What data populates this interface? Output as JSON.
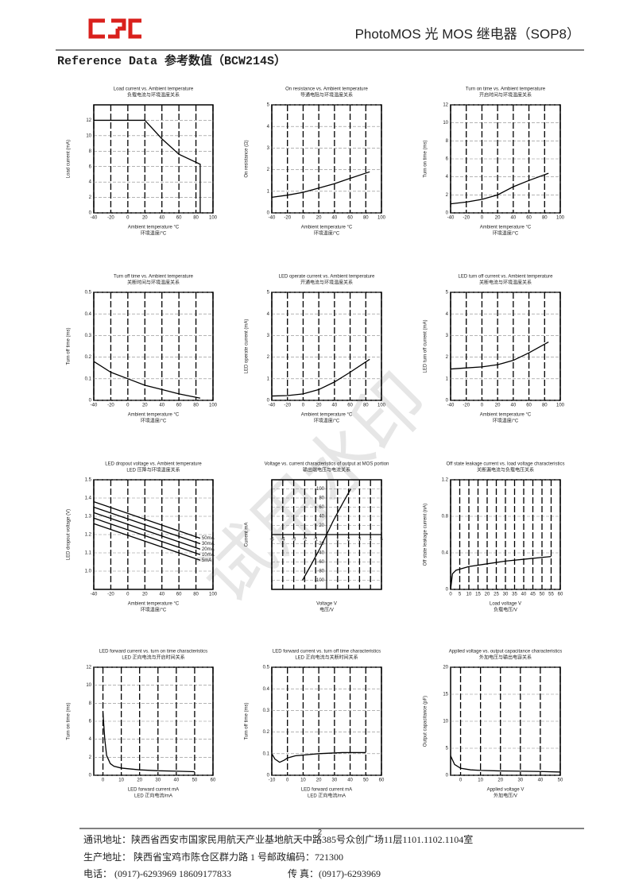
{
  "header": {
    "title": "PhotoMOS 光 MOS 继电器（SOP8）"
  },
  "section_title": "Reference Data 参考数值（BCW214S）",
  "watermark": "试用水印",
  "charts": [
    {
      "type": "line",
      "title": "Load current vs. Ambient temperature",
      "title_cn": "负载电流与环境温度关系",
      "xlabel": "Ambient temperature °C",
      "xlabel_cn": "环境温度/°C",
      "ylabel": "Load current (mA)",
      "xlim": [
        -40,
        100
      ],
      "ylim": [
        0,
        14
      ],
      "xticks": [
        -40,
        -20,
        0,
        20,
        40,
        60,
        80,
        100
      ],
      "yticks": [
        0,
        2,
        4,
        6,
        8,
        10,
        12
      ],
      "x": [
        -40,
        20,
        40,
        60,
        85,
        85
      ],
      "series": [
        {
          "values": [
            12,
            12,
            9.6,
            7.6,
            6.3,
            0
          ]
        }
      ]
    },
    {
      "type": "line",
      "title": "On resistance vs. Ambient temperature",
      "title_cn": "导通电阻与环境温度关系",
      "xlabel": "Ambient temperature °C",
      "xlabel_cn": "环境温度/°C",
      "ylabel": "On resistance (Ω)",
      "xlim": [
        -40,
        100
      ],
      "ylim": [
        0,
        5
      ],
      "xticks": [
        -40,
        -20,
        0,
        20,
        40,
        60,
        80,
        100
      ],
      "yticks": [
        0,
        1,
        2,
        3,
        4,
        5
      ],
      "x": [
        -40,
        -20,
        0,
        20,
        40,
        60,
        85
      ],
      "series": [
        {
          "values": [
            0.72,
            0.82,
            0.95,
            1.15,
            1.35,
            1.6,
            1.9
          ]
        }
      ]
    },
    {
      "type": "line",
      "title": "Turn on time vs. Ambient temperature",
      "title_cn": "开启时间与环境温度关系",
      "xlabel": "Ambient temperature °C",
      "xlabel_cn": "环境温度/°C",
      "ylabel": "Turn on time (ms)",
      "xlim": [
        -40,
        100
      ],
      "ylim": [
        0,
        12
      ],
      "xticks": [
        -40,
        -20,
        0,
        20,
        40,
        60,
        80,
        100
      ],
      "yticks": [
        0,
        2,
        4,
        6,
        8,
        10,
        12
      ],
      "x": [
        -40,
        -20,
        0,
        20,
        40,
        60,
        85
      ],
      "series": [
        {
          "values": [
            1.0,
            1.2,
            1.5,
            2.0,
            2.9,
            3.6,
            4.4
          ]
        }
      ]
    },
    {
      "type": "line",
      "title": "Turn off time vs. Ambient temperature",
      "title_cn": "关断时间与环境温度关系",
      "xlabel": "Ambient temperature °C",
      "xlabel_cn": "环境温度/°C",
      "ylabel": "Turn off time (ms)",
      "xlim": [
        -40,
        100
      ],
      "ylim": [
        0,
        0.5
      ],
      "xticks": [
        -40,
        -20,
        0,
        20,
        40,
        60,
        80,
        100
      ],
      "yticks": [
        0,
        0.1,
        0.2,
        0.3,
        0.4,
        0.5
      ],
      "x": [
        -40,
        -20,
        0,
        20,
        40,
        60,
        85
      ],
      "series": [
        {
          "values": [
            0.18,
            0.13,
            0.1,
            0.07,
            0.05,
            0.03,
            0.01
          ]
        }
      ]
    },
    {
      "type": "line",
      "title": "LED operate current vs. Ambient temperature",
      "title_cn": "开通电流与环境温度关系",
      "xlabel": "Ambient temperature °C",
      "xlabel_cn": "环境温度/°C",
      "ylabel": "LED operate current (mA)",
      "xlim": [
        -40,
        100
      ],
      "ylim": [
        0,
        5
      ],
      "xticks": [
        -40,
        -20,
        0,
        20,
        40,
        60,
        80,
        100
      ],
      "yticks": [
        0,
        1,
        2,
        3,
        4,
        5
      ],
      "x": [
        -40,
        -20,
        0,
        20,
        40,
        60,
        85
      ],
      "series": [
        {
          "values": [
            0.2,
            0.22,
            0.3,
            0.5,
            0.85,
            1.3,
            1.9
          ]
        }
      ]
    },
    {
      "type": "line",
      "title": "LED turn off current vs. Ambient temperature",
      "title_cn": "关断电流与环境温度关系",
      "xlabel": "Ambient temperature °C",
      "xlabel_cn": "环境温度/°C",
      "ylabel": "LED turn off current (mA)",
      "xlim": [
        -40,
        100
      ],
      "ylim": [
        0,
        5
      ],
      "xticks": [
        -40,
        -20,
        0,
        20,
        40,
        60,
        80,
        100
      ],
      "yticks": [
        0,
        1,
        2,
        3,
        4,
        5
      ],
      "x": [
        -40,
        -20,
        0,
        20,
        40,
        60,
        85
      ],
      "series": [
        {
          "values": [
            1.45,
            1.5,
            1.55,
            1.65,
            1.85,
            2.2,
            2.7
          ]
        }
      ]
    },
    {
      "type": "line",
      "title": "LED dropout voltage vs. Ambient temperature",
      "title_cn": "LED 压降与环境温度关系",
      "xlabel": "Ambient temperature °C",
      "xlabel_cn": "环境温度/°C",
      "ylabel": "LED dropout voltage (V)",
      "xlim": [
        -40,
        100
      ],
      "ylim": [
        0.9,
        1.5
      ],
      "xticks": [
        -40,
        -20,
        0,
        20,
        40,
        60,
        80,
        100
      ],
      "yticks": [
        {
          "value": 1,
          "label": "1.0"
        },
        1.1,
        1.2,
        1.3,
        1.4,
        1.5
      ],
      "x": [
        -40,
        85
      ],
      "series": [
        {
          "name": "50mA",
          "values": [
            1.38,
            1.18
          ]
        },
        {
          "name": "30mA",
          "values": [
            1.35,
            1.15
          ]
        },
        {
          "name": "20mA",
          "values": [
            1.32,
            1.12
          ]
        },
        {
          "name": "10mA",
          "values": [
            1.29,
            1.09
          ]
        },
        {
          "name": "5mA",
          "values": [
            1.26,
            1.06
          ]
        }
      ]
    },
    {
      "type": "line",
      "axes": "crossed",
      "title": "Voltage vs. current characteristics of output at MOS portion",
      "title_cn": "输出端电压与电流关系",
      "xlabel": "Voltage V",
      "xlabel_cn": "电压/V",
      "ylabel": "Current mA",
      "xlim": [
        -5,
        5
      ],
      "ylim": [
        -120,
        120
      ],
      "xticks": [
        -5,
        -4,
        -3,
        -2,
        -1,
        1,
        2,
        3,
        4,
        5
      ],
      "yticks": [
        -100,
        -80,
        -60,
        -40,
        -20,
        20,
        40,
        60,
        80,
        100
      ],
      "x": [
        -2.2,
        -1.5,
        -0.6,
        0,
        0.6,
        1.5,
        2.2
      ],
      "series": [
        {
          "values": [
            -100,
            -70,
            -30,
            0,
            30,
            70,
            100
          ]
        }
      ]
    },
    {
      "type": "line",
      "title": "Off state leakage current vs. load voltage characteristics",
      "title_cn": "关断漏电流与负载电压关系",
      "xlabel": "Load voltage V",
      "xlabel_cn": "负载电压/V",
      "ylabel": "Off state leakage current (nA)",
      "xlim": [
        0,
        60
      ],
      "ylim": [
        0,
        1.2
      ],
      "xticks": [
        0,
        5,
        10,
        15,
        20,
        25,
        30,
        35,
        40,
        45,
        50,
        55,
        60
      ],
      "yticks": [
        0,
        0.4,
        0.8,
        1.2
      ],
      "x": [
        0,
        1,
        3,
        10,
        20,
        30,
        40,
        50,
        55
      ],
      "series": [
        {
          "values": [
            0,
            0.17,
            0.21,
            0.25,
            0.28,
            0.31,
            0.33,
            0.35,
            0.36
          ]
        }
      ]
    },
    {
      "type": "line",
      "title": "LED forward current vs. turn on time characteristics",
      "title_cn": "LED 正向电流与开启时间关系",
      "xlabel": "LED forward current mA",
      "xlabel_cn": "LED 正向电流/mA",
      "ylabel": "Turn on time (ms)",
      "xlim": [
        -5,
        60
      ],
      "ylim": [
        0,
        12
      ],
      "xticks": [
        0,
        10,
        20,
        30,
        40,
        50,
        60
      ],
      "yticks": [
        0,
        2,
        4,
        6,
        8,
        10,
        12
      ],
      "x": [
        0,
        1,
        2,
        4,
        6,
        10,
        20,
        30,
        40,
        50
      ],
      "series": [
        {
          "values": [
            7,
            4,
            2.2,
            1.3,
            1.0,
            0.8,
            0.6,
            0.5,
            0.45,
            0.4
          ]
        }
      ]
    },
    {
      "type": "line",
      "title": "LED forward current vs. turn off time characteristics",
      "title_cn": "LED 正向电流与关断时间关系",
      "xlabel": "LED forward current mA",
      "xlabel_cn": "LED 正向电流/mA",
      "ylabel": "Turn off time (ms)",
      "xlim": [
        -10,
        60
      ],
      "ylim": [
        0,
        0.5
      ],
      "xticks": [
        -10,
        0,
        10,
        20,
        30,
        40,
        50,
        60
      ],
      "yticks": [
        0,
        0.1,
        0.2,
        0.3,
        0.4,
        0.5
      ],
      "x": [
        -10,
        -8,
        -5,
        -2,
        0,
        5,
        20,
        35,
        50
      ],
      "series": [
        {
          "values": [
            0.1,
            0.075,
            0.06,
            0.07,
            0.08,
            0.09,
            0.1,
            0.105,
            0.105
          ]
        }
      ]
    },
    {
      "type": "line",
      "title": "Applied voltage vs. output capacitance characteristics",
      "title_cn": "外加电压与输出电容关系",
      "xlabel": "Applied voltage V",
      "xlabel_cn": "外加电压/V",
      "ylabel": "Output capacitance (pF)",
      "xlim": [
        -5,
        50
      ],
      "ylim": [
        0,
        20
      ],
      "xticks": [
        0,
        10,
        20,
        30,
        40,
        50
      ],
      "yticks": [
        0,
        5,
        10,
        15,
        20
      ],
      "x": [
        -5,
        -3,
        0,
        5,
        10,
        20,
        30,
        40,
        50
      ],
      "series": [
        {
          "values": [
            3.6,
            2.0,
            1.3,
            1.0,
            0.9,
            0.8,
            0.75,
            0.7,
            0.6
          ]
        }
      ]
    }
  ],
  "footer": {
    "page_number": "2",
    "address": "通讯地址：陕西省西安市国家民用航天产业基地航天中路385号众创广场11层1101.1102.1104室",
    "factory": "生产地址：  陕西省宝鸡市陈仓区群力路 1 号邮政编码：721300",
    "phone": "电话：  (0917)-6293969    18609177833",
    "fax": "传     真：(0917)-6293969"
  }
}
